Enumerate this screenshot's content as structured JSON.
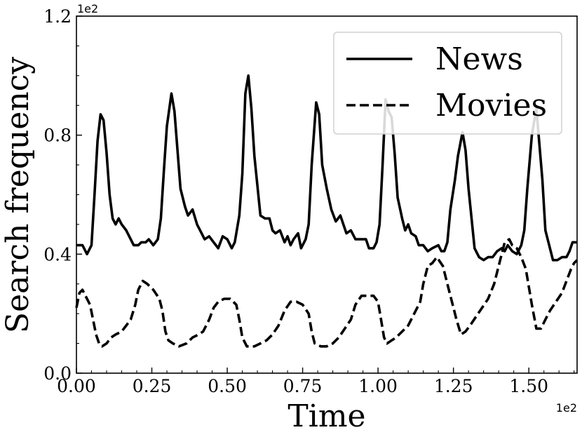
{
  "chart_data": {
    "type": "line",
    "xlabel": "Time",
    "ylabel": "Search frequency",
    "x_offset_label": "1e2",
    "y_offset_label": "1e2",
    "xlim": [
      0,
      1.66
    ],
    "ylim": [
      0,
      1.2
    ],
    "x_ticks": [
      0.0,
      0.25,
      0.5,
      0.75,
      1.0,
      1.25,
      1.5
    ],
    "x_tick_labels": [
      "0.00",
      "0.25",
      "0.50",
      "0.75",
      "1.00",
      "1.25",
      "1.50"
    ],
    "y_ticks": [
      0.0,
      0.4,
      0.8,
      1.2
    ],
    "y_tick_labels": [
      "0.0",
      "0.4",
      "0.8",
      "1.2"
    ],
    "grid": false,
    "legend": "top-right",
    "series": [
      {
        "name": "News",
        "style": "solid",
        "color": "#000000",
        "points": [
          [
            0.0,
            0.43
          ],
          [
            0.02,
            0.43
          ],
          [
            0.035,
            0.4
          ],
          [
            0.05,
            0.43
          ],
          [
            0.06,
            0.6
          ],
          [
            0.07,
            0.78
          ],
          [
            0.08,
            0.87
          ],
          [
            0.09,
            0.85
          ],
          [
            0.1,
            0.74
          ],
          [
            0.11,
            0.6
          ],
          [
            0.12,
            0.52
          ],
          [
            0.13,
            0.5
          ],
          [
            0.14,
            0.52
          ],
          [
            0.15,
            0.5
          ],
          [
            0.165,
            0.48
          ],
          [
            0.18,
            0.45
          ],
          [
            0.19,
            0.43
          ],
          [
            0.205,
            0.43
          ],
          [
            0.215,
            0.44
          ],
          [
            0.23,
            0.44
          ],
          [
            0.24,
            0.45
          ],
          [
            0.255,
            0.43
          ],
          [
            0.27,
            0.45
          ],
          [
            0.28,
            0.52
          ],
          [
            0.29,
            0.68
          ],
          [
            0.3,
            0.83
          ],
          [
            0.315,
            0.94
          ],
          [
            0.325,
            0.88
          ],
          [
            0.335,
            0.75
          ],
          [
            0.345,
            0.62
          ],
          [
            0.36,
            0.56
          ],
          [
            0.37,
            0.53
          ],
          [
            0.385,
            0.55
          ],
          [
            0.4,
            0.5
          ],
          [
            0.415,
            0.47
          ],
          [
            0.425,
            0.45
          ],
          [
            0.44,
            0.46
          ],
          [
            0.455,
            0.44
          ],
          [
            0.47,
            0.42
          ],
          [
            0.485,
            0.46
          ],
          [
            0.5,
            0.45
          ],
          [
            0.515,
            0.42
          ],
          [
            0.525,
            0.44
          ],
          [
            0.54,
            0.53
          ],
          [
            0.55,
            0.67
          ],
          [
            0.56,
            0.94
          ],
          [
            0.57,
            1.0
          ],
          [
            0.58,
            0.89
          ],
          [
            0.59,
            0.73
          ],
          [
            0.6,
            0.63
          ],
          [
            0.61,
            0.53
          ],
          [
            0.625,
            0.52
          ],
          [
            0.64,
            0.52
          ],
          [
            0.65,
            0.48
          ],
          [
            0.66,
            0.47
          ],
          [
            0.675,
            0.48
          ],
          [
            0.69,
            0.44
          ],
          [
            0.7,
            0.46
          ],
          [
            0.71,
            0.43
          ],
          [
            0.72,
            0.45
          ],
          [
            0.735,
            0.47
          ],
          [
            0.745,
            0.42
          ],
          [
            0.76,
            0.45
          ],
          [
            0.77,
            0.5
          ],
          [
            0.78,
            0.7
          ],
          [
            0.795,
            0.91
          ],
          [
            0.805,
            0.87
          ],
          [
            0.815,
            0.7
          ],
          [
            0.83,
            0.62
          ],
          [
            0.845,
            0.55
          ],
          [
            0.86,
            0.51
          ],
          [
            0.875,
            0.53
          ],
          [
            0.885,
            0.5
          ],
          [
            0.895,
            0.47
          ],
          [
            0.91,
            0.48
          ],
          [
            0.925,
            0.45
          ],
          [
            0.945,
            0.45
          ],
          [
            0.96,
            0.45
          ],
          [
            0.97,
            0.42
          ],
          [
            0.985,
            0.42
          ],
          [
            0.995,
            0.44
          ],
          [
            1.005,
            0.5
          ],
          [
            1.015,
            0.7
          ],
          [
            1.025,
            0.92
          ],
          [
            1.035,
            0.88
          ],
          [
            1.045,
            0.86
          ],
          [
            1.055,
            0.74
          ],
          [
            1.065,
            0.59
          ],
          [
            1.08,
            0.52
          ],
          [
            1.09,
            0.48
          ],
          [
            1.1,
            0.5
          ],
          [
            1.11,
            0.47
          ],
          [
            1.125,
            0.46
          ],
          [
            1.135,
            0.43
          ],
          [
            1.15,
            0.43
          ],
          [
            1.165,
            0.41
          ],
          [
            1.18,
            0.42
          ],
          [
            1.2,
            0.43
          ],
          [
            1.21,
            0.41
          ],
          [
            1.22,
            0.41
          ],
          [
            1.23,
            0.44
          ],
          [
            1.24,
            0.55
          ],
          [
            1.255,
            0.65
          ],
          [
            1.265,
            0.73
          ],
          [
            1.28,
            0.81
          ],
          [
            1.29,
            0.75
          ],
          [
            1.3,
            0.62
          ],
          [
            1.31,
            0.52
          ],
          [
            1.32,
            0.42
          ],
          [
            1.335,
            0.39
          ],
          [
            1.35,
            0.38
          ],
          [
            1.365,
            0.39
          ],
          [
            1.38,
            0.39
          ],
          [
            1.395,
            0.41
          ],
          [
            1.41,
            0.42
          ],
          [
            1.42,
            0.41
          ],
          [
            1.43,
            0.43
          ],
          [
            1.445,
            0.41
          ],
          [
            1.46,
            0.4
          ],
          [
            1.475,
            0.43
          ],
          [
            1.485,
            0.48
          ],
          [
            1.495,
            0.62
          ],
          [
            1.51,
            0.8
          ],
          [
            1.525,
            0.89
          ],
          [
            1.535,
            0.77
          ],
          [
            1.545,
            0.65
          ],
          [
            1.555,
            0.48
          ],
          [
            1.57,
            0.42
          ],
          [
            1.58,
            0.38
          ],
          [
            1.595,
            0.38
          ],
          [
            1.61,
            0.39
          ],
          [
            1.625,
            0.39
          ],
          [
            1.635,
            0.41
          ],
          [
            1.645,
            0.44
          ],
          [
            1.66,
            0.44
          ]
        ]
      },
      {
        "name": "Movies",
        "style": "dashed",
        "color": "#000000",
        "points": [
          [
            0.0,
            0.22
          ],
          [
            0.01,
            0.27
          ],
          [
            0.02,
            0.28
          ],
          [
            0.03,
            0.26
          ],
          [
            0.045,
            0.23
          ],
          [
            0.055,
            0.18
          ],
          [
            0.065,
            0.13
          ],
          [
            0.075,
            0.1
          ],
          [
            0.085,
            0.09
          ],
          [
            0.1,
            0.1
          ],
          [
            0.115,
            0.12
          ],
          [
            0.13,
            0.13
          ],
          [
            0.15,
            0.14
          ],
          [
            0.165,
            0.16
          ],
          [
            0.18,
            0.18
          ],
          [
            0.195,
            0.23
          ],
          [
            0.205,
            0.28
          ],
          [
            0.22,
            0.31
          ],
          [
            0.235,
            0.3
          ],
          [
            0.255,
            0.28
          ],
          [
            0.275,
            0.25
          ],
          [
            0.285,
            0.21
          ],
          [
            0.295,
            0.14
          ],
          [
            0.305,
            0.11
          ],
          [
            0.32,
            0.1
          ],
          [
            0.34,
            0.09
          ],
          [
            0.365,
            0.1
          ],
          [
            0.385,
            0.12
          ],
          [
            0.405,
            0.13
          ],
          [
            0.42,
            0.14
          ],
          [
            0.44,
            0.18
          ],
          [
            0.455,
            0.22
          ],
          [
            0.47,
            0.24
          ],
          [
            0.49,
            0.25
          ],
          [
            0.51,
            0.25
          ],
          [
            0.53,
            0.23
          ],
          [
            0.54,
            0.18
          ],
          [
            0.55,
            0.12
          ],
          [
            0.565,
            0.09
          ],
          [
            0.59,
            0.09
          ],
          [
            0.61,
            0.1
          ],
          [
            0.63,
            0.11
          ],
          [
            0.65,
            0.13
          ],
          [
            0.67,
            0.16
          ],
          [
            0.69,
            0.21
          ],
          [
            0.71,
            0.24
          ],
          [
            0.73,
            0.24
          ],
          [
            0.75,
            0.23
          ],
          [
            0.77,
            0.2
          ],
          [
            0.78,
            0.14
          ],
          [
            0.79,
            0.1
          ],
          [
            0.81,
            0.09
          ],
          [
            0.83,
            0.09
          ],
          [
            0.85,
            0.1
          ],
          [
            0.87,
            0.12
          ],
          [
            0.89,
            0.15
          ],
          [
            0.91,
            0.18
          ],
          [
            0.925,
            0.23
          ],
          [
            0.945,
            0.26
          ],
          [
            0.965,
            0.26
          ],
          [
            0.985,
            0.26
          ],
          [
            1.0,
            0.24
          ],
          [
            1.01,
            0.18
          ],
          [
            1.02,
            0.12
          ],
          [
            1.03,
            0.1
          ],
          [
            1.045,
            0.11
          ],
          [
            1.06,
            0.12
          ],
          [
            1.08,
            0.14
          ],
          [
            1.1,
            0.16
          ],
          [
            1.12,
            0.2
          ],
          [
            1.14,
            0.24
          ],
          [
            1.15,
            0.3
          ],
          [
            1.165,
            0.36
          ],
          [
            1.18,
            0.37
          ],
          [
            1.195,
            0.39
          ],
          [
            1.215,
            0.36
          ],
          [
            1.23,
            0.3
          ],
          [
            1.245,
            0.24
          ],
          [
            1.26,
            0.18
          ],
          [
            1.275,
            0.13
          ],
          [
            1.29,
            0.14
          ],
          [
            1.305,
            0.16
          ],
          [
            1.325,
            0.19
          ],
          [
            1.345,
            0.22
          ],
          [
            1.365,
            0.25
          ],
          [
            1.385,
            0.3
          ],
          [
            1.405,
            0.38
          ],
          [
            1.42,
            0.44
          ],
          [
            1.435,
            0.45
          ],
          [
            1.445,
            0.43
          ],
          [
            1.46,
            0.42
          ],
          [
            1.475,
            0.39
          ],
          [
            1.49,
            0.35
          ],
          [
            1.5,
            0.29
          ],
          [
            1.51,
            0.23
          ],
          [
            1.525,
            0.15
          ],
          [
            1.54,
            0.15
          ],
          [
            1.555,
            0.18
          ],
          [
            1.57,
            0.21
          ],
          [
            1.59,
            0.24
          ],
          [
            1.61,
            0.27
          ],
          [
            1.625,
            0.31
          ],
          [
            1.64,
            0.35
          ],
          [
            1.65,
            0.37
          ],
          [
            1.66,
            0.38
          ]
        ]
      }
    ]
  }
}
